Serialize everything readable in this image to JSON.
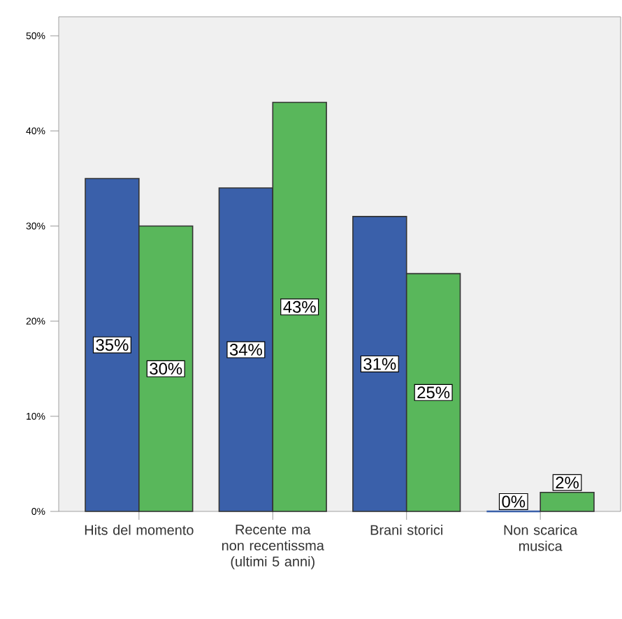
{
  "chart_data": {
    "type": "bar",
    "categories": [
      "Hits del momento",
      "Recente ma non recentissma (ultimi 5 anni)",
      "Brani storici",
      "Non scarica musica"
    ],
    "series": [
      {
        "color": "#3a60aa",
        "values": [
          35,
          34,
          31,
          0
        ],
        "value_labels": [
          "35%",
          "34%",
          "31%",
          "0%"
        ]
      },
      {
        "color": "#59b75b",
        "values": [
          30,
          43,
          25,
          2
        ],
        "value_labels": [
          "30%",
          "43%",
          "25%",
          "2%"
        ]
      }
    ],
    "ylim": [
      0,
      52
    ],
    "yticks": [
      {
        "value": 0,
        "label": "0%"
      },
      {
        "value": 10,
        "label": "10%"
      },
      {
        "value": 20,
        "label": "20%"
      },
      {
        "value": 30,
        "label": "30%"
      },
      {
        "value": 40,
        "label": "40%"
      },
      {
        "value": 50,
        "label": "50%"
      }
    ],
    "grid": false
  }
}
